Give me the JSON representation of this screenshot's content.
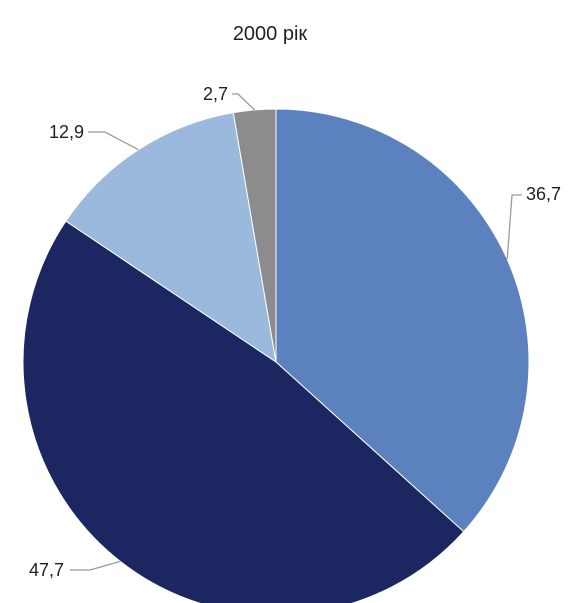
{
  "chart_data": {
    "type": "pie",
    "title": "2000 рік",
    "values": [
      36.7,
      47.7,
      12.9,
      2.7
    ],
    "labels": [
      "36,7",
      "47,7",
      "12,9",
      "2,7"
    ],
    "colors": [
      "#5b82bf",
      "#1c2660",
      "#9bb8dd",
      "#8c8c8c"
    ],
    "start_angle_deg": 0,
    "direction": "clockwise",
    "legend": "none"
  }
}
